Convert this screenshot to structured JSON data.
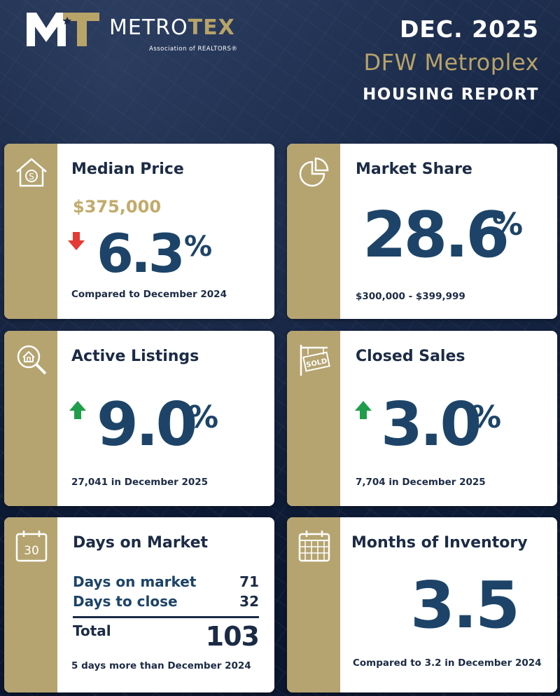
{
  "header": {
    "logo_mark": "MT",
    "logo_name_part1": "METRO",
    "logo_name_part2": "TEX",
    "logo_tagline": "Association of REALTORS®",
    "date": "DEC. 2025",
    "region": "DFW Metroplex",
    "report": "HOUSING REPORT"
  },
  "colors": {
    "navy": "#1d4468",
    "gold": "#b5a470",
    "down_red": "#e53935",
    "up_green": "#1e9e4a"
  },
  "cards": {
    "median_price": {
      "icon": "house-dollar-icon",
      "title": "Median Price",
      "price": "$375,000",
      "direction": "down",
      "change": "6.3",
      "unit": "%",
      "footnote": "Compared to December 2024"
    },
    "market_share": {
      "icon": "pie-chart-icon",
      "title": "Market Share",
      "value": "28.6",
      "unit": "%",
      "footnote": "$300,000 - $399,999"
    },
    "active_listings": {
      "icon": "house-search-icon",
      "title": "Active Listings",
      "direction": "up",
      "change": "9.0",
      "unit": "%",
      "footnote": "27,041 in December 2025"
    },
    "closed_sales": {
      "icon": "sold-sign-icon",
      "title": "Closed Sales",
      "direction": "up",
      "change": "3.0",
      "unit": "%",
      "footnote": "7,704 in December 2025"
    },
    "days_on_market": {
      "icon": "calendar-30-icon",
      "icon_text": "30",
      "title": "Days on Market",
      "rows": [
        {
          "label": "Days on market",
          "value": "71"
        },
        {
          "label": "Days to close",
          "value": "32"
        }
      ],
      "total_label": "Total",
      "total_value": "103",
      "footnote": "5 days more than December 2024"
    },
    "months_inventory": {
      "icon": "calendar-grid-icon",
      "title": "Months of Inventory",
      "value": "3.5",
      "footnote": "Compared to 3.2 in December 2024"
    }
  }
}
